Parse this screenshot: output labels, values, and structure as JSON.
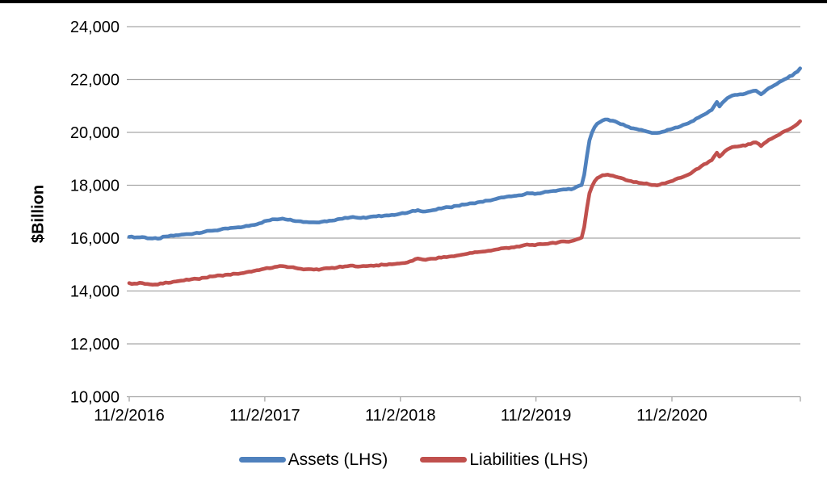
{
  "page": {
    "background_color": "#ffffff",
    "top_border_color": "#000000"
  },
  "chart_data": {
    "type": "line",
    "title": "",
    "xlabel": "",
    "ylabel": "$Billion",
    "ylim": [
      10000,
      24000
    ],
    "grid": "horizontal",
    "gridline_color": "#A6A6A6",
    "legend_position": "bottom",
    "y_ticks": [
      10000,
      12000,
      14000,
      16000,
      18000,
      20000,
      22000,
      24000
    ],
    "y_tick_labels": [
      "10,000",
      "12,000",
      "14,000",
      "16,000",
      "18,000",
      "20,000",
      "22,000",
      "24,000"
    ],
    "x_tick_labels": [
      "11/2/2016",
      "11/2/2017",
      "11/2/2018",
      "11/2/2019",
      "11/2/2020"
    ],
    "x_tick_dates": [
      "2016-11-02",
      "2017-11-02",
      "2018-11-02",
      "2019-11-02",
      "2020-11-02"
    ],
    "x_range": [
      "2016-11-02",
      "2021-10-13"
    ],
    "series": [
      {
        "id": "assets",
        "name": "Assets (LHS)",
        "color": "#4F81BD",
        "points": [
          [
            "2016-11-02",
            16050
          ],
          [
            "2016-11-16",
            16020
          ],
          [
            "2016-12-07",
            16040
          ],
          [
            "2016-12-28",
            15990
          ],
          [
            "2017-01-18",
            15980
          ],
          [
            "2017-02-08",
            16060
          ],
          [
            "2017-03-01",
            16090
          ],
          [
            "2017-03-22",
            16130
          ],
          [
            "2017-04-12",
            16150
          ],
          [
            "2017-05-03",
            16200
          ],
          [
            "2017-05-24",
            16240
          ],
          [
            "2017-06-14",
            16280
          ],
          [
            "2017-07-05",
            16320
          ],
          [
            "2017-07-26",
            16360
          ],
          [
            "2017-08-16",
            16400
          ],
          [
            "2017-09-06",
            16430
          ],
          [
            "2017-09-27",
            16490
          ],
          [
            "2017-10-18",
            16560
          ],
          [
            "2017-11-08",
            16660
          ],
          [
            "2017-11-29",
            16710
          ],
          [
            "2017-12-20",
            16740
          ],
          [
            "2018-01-10",
            16700
          ],
          [
            "2018-01-31",
            16640
          ],
          [
            "2018-02-21",
            16610
          ],
          [
            "2018-03-14",
            16600
          ],
          [
            "2018-04-04",
            16620
          ],
          [
            "2018-04-25",
            16660
          ],
          [
            "2018-05-16",
            16710
          ],
          [
            "2018-06-06",
            16770
          ],
          [
            "2018-06-27",
            16800
          ],
          [
            "2018-07-18",
            16760
          ],
          [
            "2018-08-08",
            16790
          ],
          [
            "2018-08-29",
            16820
          ],
          [
            "2018-09-19",
            16850
          ],
          [
            "2018-10-10",
            16880
          ],
          [
            "2018-10-31",
            16920
          ],
          [
            "2018-11-21",
            16960
          ],
          [
            "2018-12-19",
            17060
          ],
          [
            "2019-01-09",
            17010
          ],
          [
            "2019-01-30",
            17060
          ],
          [
            "2019-02-20",
            17120
          ],
          [
            "2019-03-13",
            17170
          ],
          [
            "2019-04-03",
            17220
          ],
          [
            "2019-04-24",
            17270
          ],
          [
            "2019-05-15",
            17320
          ],
          [
            "2019-06-05",
            17370
          ],
          [
            "2019-06-26",
            17420
          ],
          [
            "2019-07-17",
            17480
          ],
          [
            "2019-08-07",
            17540
          ],
          [
            "2019-08-28",
            17580
          ],
          [
            "2019-09-18",
            17620
          ],
          [
            "2019-10-09",
            17700
          ],
          [
            "2019-10-30",
            17670
          ],
          [
            "2019-11-20",
            17720
          ],
          [
            "2019-12-11",
            17770
          ],
          [
            "2020-01-01",
            17810
          ],
          [
            "2020-01-22",
            17840
          ],
          [
            "2020-02-12",
            17880
          ],
          [
            "2020-03-04",
            18010
          ],
          [
            "2020-03-11",
            18400
          ],
          [
            "2020-03-18",
            19100
          ],
          [
            "2020-03-25",
            19700
          ],
          [
            "2020-04-01",
            20000
          ],
          [
            "2020-04-08",
            20200
          ],
          [
            "2020-04-15",
            20330
          ],
          [
            "2020-04-29",
            20450
          ],
          [
            "2020-05-13",
            20490
          ],
          [
            "2020-05-27",
            20440
          ],
          [
            "2020-06-10",
            20360
          ],
          [
            "2020-06-24",
            20300
          ],
          [
            "2020-07-08",
            20210
          ],
          [
            "2020-07-22",
            20150
          ],
          [
            "2020-08-05",
            20100
          ],
          [
            "2020-08-19",
            20060
          ],
          [
            "2020-09-02",
            20010
          ],
          [
            "2020-09-16",
            19980
          ],
          [
            "2020-09-30",
            19990
          ],
          [
            "2020-10-14",
            20040
          ],
          [
            "2020-10-28",
            20110
          ],
          [
            "2020-11-11",
            20180
          ],
          [
            "2020-11-25",
            20230
          ],
          [
            "2020-12-09",
            20310
          ],
          [
            "2020-12-23",
            20400
          ],
          [
            "2021-01-06",
            20520
          ],
          [
            "2021-01-20",
            20620
          ],
          [
            "2021-02-03",
            20720
          ],
          [
            "2021-02-17",
            20850
          ],
          [
            "2021-03-03",
            21150
          ],
          [
            "2021-03-10",
            20980
          ],
          [
            "2021-03-24",
            21200
          ],
          [
            "2021-04-07",
            21350
          ],
          [
            "2021-04-21",
            21420
          ],
          [
            "2021-05-05",
            21440
          ],
          [
            "2021-05-19",
            21470
          ],
          [
            "2021-06-02",
            21540
          ],
          [
            "2021-06-16",
            21580
          ],
          [
            "2021-06-30",
            21440
          ],
          [
            "2021-07-14",
            21600
          ],
          [
            "2021-07-28",
            21720
          ],
          [
            "2021-08-11",
            21830
          ],
          [
            "2021-08-25",
            21950
          ],
          [
            "2021-09-08",
            22050
          ],
          [
            "2021-09-22",
            22150
          ],
          [
            "2021-10-06",
            22300
          ],
          [
            "2021-10-13",
            22420
          ]
        ]
      },
      {
        "id": "liabilities",
        "name": "Liabilities (LHS)",
        "color": "#C0504D",
        "points": [
          [
            "2016-11-02",
            14300
          ],
          [
            "2016-11-16",
            14280
          ],
          [
            "2016-12-07",
            14300
          ],
          [
            "2016-12-28",
            14250
          ],
          [
            "2017-01-18",
            14240
          ],
          [
            "2017-02-08",
            14320
          ],
          [
            "2017-03-01",
            14350
          ],
          [
            "2017-03-22",
            14390
          ],
          [
            "2017-04-12",
            14420
          ],
          [
            "2017-05-03",
            14460
          ],
          [
            "2017-05-24",
            14500
          ],
          [
            "2017-06-14",
            14550
          ],
          [
            "2017-07-05",
            14590
          ],
          [
            "2017-07-26",
            14620
          ],
          [
            "2017-08-16",
            14650
          ],
          [
            "2017-09-06",
            14680
          ],
          [
            "2017-09-27",
            14730
          ],
          [
            "2017-10-18",
            14790
          ],
          [
            "2017-11-08",
            14870
          ],
          [
            "2017-11-29",
            14910
          ],
          [
            "2017-12-20",
            14940
          ],
          [
            "2018-01-10",
            14900
          ],
          [
            "2018-01-31",
            14850
          ],
          [
            "2018-02-21",
            14820
          ],
          [
            "2018-03-14",
            14810
          ],
          [
            "2018-04-04",
            14830
          ],
          [
            "2018-04-25",
            14860
          ],
          [
            "2018-05-16",
            14890
          ],
          [
            "2018-06-06",
            14930
          ],
          [
            "2018-06-27",
            14960
          ],
          [
            "2018-07-18",
            14930
          ],
          [
            "2018-08-08",
            14950
          ],
          [
            "2018-08-29",
            14970
          ],
          [
            "2018-09-19",
            14990
          ],
          [
            "2018-10-10",
            15010
          ],
          [
            "2018-10-31",
            15040
          ],
          [
            "2018-11-21",
            15080
          ],
          [
            "2018-12-19",
            15230
          ],
          [
            "2019-01-09",
            15180
          ],
          [
            "2019-01-30",
            15220
          ],
          [
            "2019-02-20",
            15260
          ],
          [
            "2019-03-13",
            15300
          ],
          [
            "2019-04-03",
            15340
          ],
          [
            "2019-04-24",
            15390
          ],
          [
            "2019-05-15",
            15440
          ],
          [
            "2019-06-05",
            15480
          ],
          [
            "2019-06-26",
            15520
          ],
          [
            "2019-07-17",
            15570
          ],
          [
            "2019-08-07",
            15620
          ],
          [
            "2019-08-28",
            15650
          ],
          [
            "2019-09-18",
            15680
          ],
          [
            "2019-10-09",
            15760
          ],
          [
            "2019-10-30",
            15730
          ],
          [
            "2019-11-20",
            15770
          ],
          [
            "2019-12-11",
            15810
          ],
          [
            "2020-01-01",
            15840
          ],
          [
            "2020-01-22",
            15870
          ],
          [
            "2020-02-12",
            15910
          ],
          [
            "2020-03-04",
            16020
          ],
          [
            "2020-03-11",
            16420
          ],
          [
            "2020-03-18",
            17120
          ],
          [
            "2020-03-25",
            17700
          ],
          [
            "2020-04-01",
            17960
          ],
          [
            "2020-04-08",
            18150
          ],
          [
            "2020-04-15",
            18270
          ],
          [
            "2020-04-29",
            18380
          ],
          [
            "2020-05-13",
            18400
          ],
          [
            "2020-05-27",
            18360
          ],
          [
            "2020-06-10",
            18300
          ],
          [
            "2020-06-24",
            18250
          ],
          [
            "2020-07-08",
            18170
          ],
          [
            "2020-07-22",
            18120
          ],
          [
            "2020-08-05",
            18090
          ],
          [
            "2020-08-19",
            18060
          ],
          [
            "2020-09-02",
            18030
          ],
          [
            "2020-09-16",
            18010
          ],
          [
            "2020-09-30",
            18020
          ],
          [
            "2020-10-14",
            18070
          ],
          [
            "2020-10-28",
            18140
          ],
          [
            "2020-11-11",
            18220
          ],
          [
            "2020-11-25",
            18280
          ],
          [
            "2020-12-09",
            18360
          ],
          [
            "2020-12-23",
            18450
          ],
          [
            "2021-01-06",
            18600
          ],
          [
            "2021-01-20",
            18720
          ],
          [
            "2021-02-03",
            18820
          ],
          [
            "2021-02-17",
            18950
          ],
          [
            "2021-03-03",
            19230
          ],
          [
            "2021-03-10",
            19080
          ],
          [
            "2021-03-24",
            19280
          ],
          [
            "2021-04-07",
            19400
          ],
          [
            "2021-04-21",
            19460
          ],
          [
            "2021-05-05",
            19480
          ],
          [
            "2021-05-19",
            19500
          ],
          [
            "2021-06-02",
            19560
          ],
          [
            "2021-06-16",
            19620
          ],
          [
            "2021-06-30",
            19480
          ],
          [
            "2021-07-14",
            19640
          ],
          [
            "2021-07-28",
            19760
          ],
          [
            "2021-08-11",
            19870
          ],
          [
            "2021-08-25",
            19990
          ],
          [
            "2021-09-08",
            20080
          ],
          [
            "2021-09-22",
            20180
          ],
          [
            "2021-10-06",
            20320
          ],
          [
            "2021-10-13",
            20420
          ]
        ]
      }
    ]
  },
  "legend": {
    "items": [
      {
        "label": "Assets (LHS)",
        "color": "#4F81BD"
      },
      {
        "label": "Liabilities (LHS)",
        "color": "#C0504D"
      }
    ]
  }
}
